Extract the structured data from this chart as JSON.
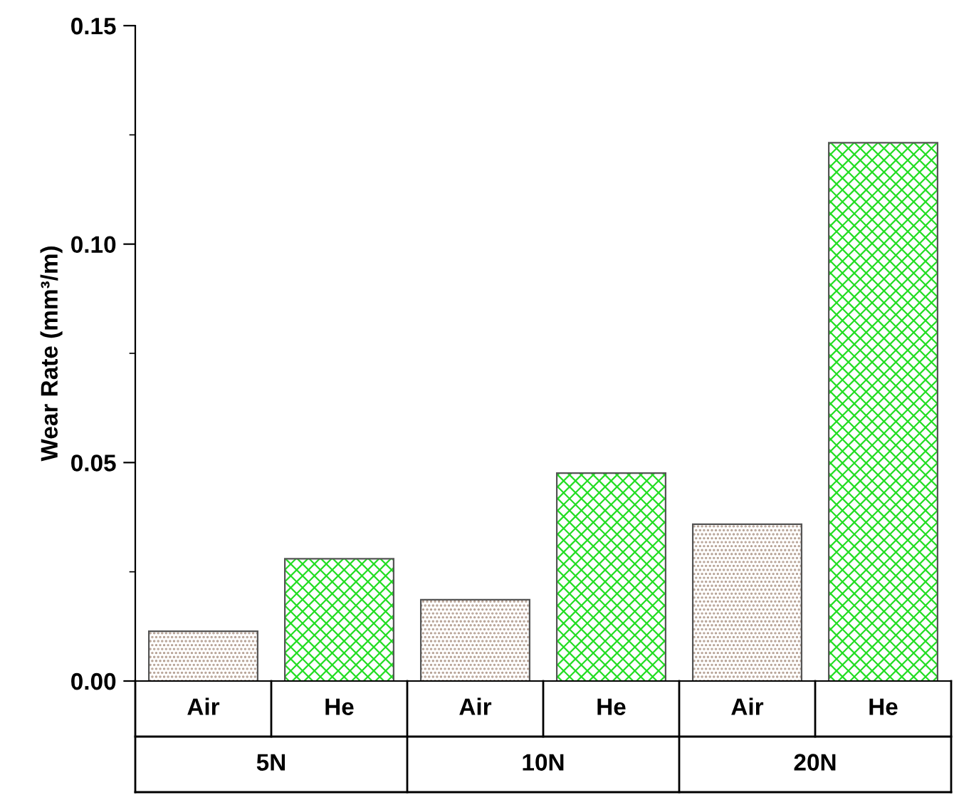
{
  "chart_data": {
    "type": "bar",
    "ylabel": "Wear Rate (mm³/m)",
    "categories": [
      "Air",
      "He",
      "Air",
      "He",
      "Air",
      "He"
    ],
    "values": [
      0.0114,
      0.028,
      0.0186,
      0.0476,
      0.0359,
      0.1232
    ],
    "colors": [
      "#b09a8c",
      "#22dd22",
      "#b09a8c",
      "#22dd22",
      "#b09a8c",
      "#22dd22"
    ],
    "annotations": [
      "5N",
      "10N",
      "20N"
    ],
    "ylim": [
      0,
      0.15
    ],
    "yticks": [
      {
        "value": 0,
        "label": "0.00"
      },
      {
        "value": 0.05,
        "label": "0.05"
      },
      {
        "value": 0.1,
        "label": "0.10"
      },
      {
        "value": 0.15,
        "label": "0.15"
      }
    ],
    "grid": false
  }
}
